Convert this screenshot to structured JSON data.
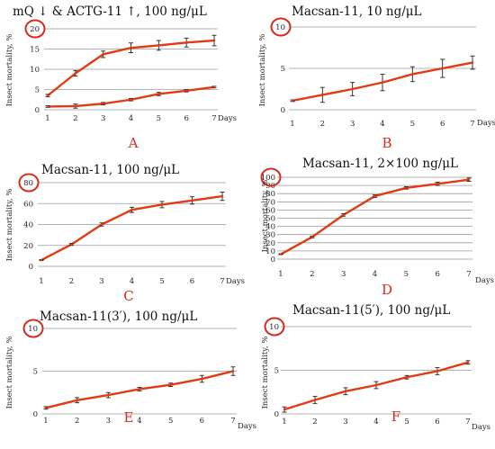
{
  "accent_color": "#e23a12",
  "circle_color": "#d62a1c",
  "grid_color": "#9a9a9a",
  "chart_data": [
    {
      "type": "line",
      "panel": "A",
      "title": "mQ ↓ & ACTG-11 ↑, 100 ng/μL",
      "xlabel": "Days",
      "ylabel": "Insect mortality, %",
      "x": [
        1,
        2,
        3,
        4,
        5,
        6,
        7
      ],
      "yticks": [
        "0",
        "5",
        "10",
        "15",
        "20"
      ],
      "ylim": [
        0,
        20
      ],
      "circled_tick": "20",
      "series": [
        {
          "values": [
            3.5,
            9,
            13.7,
            15.3,
            15.9,
            16.6,
            17.1
          ],
          "errors": [
            0.3,
            0.7,
            0.8,
            1.2,
            1.2,
            1.1,
            1.3
          ]
        },
        {
          "values": [
            0.8,
            0.9,
            1.5,
            2.5,
            3.9,
            4.7,
            5.6
          ],
          "errors": [
            0.2,
            0.5,
            0.3,
            0.3,
            0.4,
            0.3,
            0.2
          ]
        }
      ]
    },
    {
      "type": "line",
      "panel": "B",
      "title": "Macsan-11, 10 ng/μL",
      "xlabel": "Days",
      "ylabel": "Insect mortality, %",
      "x": [
        1,
        2,
        3,
        4,
        5,
        6,
        7
      ],
      "yticks": [
        "0",
        "5",
        "10"
      ],
      "ylim": [
        0,
        10
      ],
      "circled_tick": "10",
      "series": [
        {
          "values": [
            1.1,
            1.8,
            2.5,
            3.3,
            4.3,
            5.0,
            5.7
          ],
          "errors": [
            0.1,
            0.9,
            0.8,
            1.0,
            0.9,
            1.1,
            0.8
          ]
        }
      ]
    },
    {
      "type": "line",
      "panel": "C",
      "title": "Macsan-11, 100 ng/μL",
      "xlabel": "Days",
      "ylabel": "Insect mortality, %",
      "x": [
        1,
        2,
        3,
        4,
        5,
        6,
        7
      ],
      "yticks": [
        "0",
        "20",
        "40",
        "60",
        "80"
      ],
      "ylim": [
        0,
        80
      ],
      "circled_tick": "80",
      "series": [
        {
          "values": [
            6,
            21,
            40,
            54,
            59,
            63,
            67
          ],
          "errors": [
            0.5,
            1,
            1.5,
            2.5,
            3,
            3.5,
            4
          ]
        }
      ]
    },
    {
      "type": "line",
      "panel": "D",
      "title": "Macsan-11, 2×100 ng/μL",
      "xlabel": "Days",
      "ylabel": "Insect mortality, %",
      "x": [
        1,
        2,
        3,
        4,
        5,
        6,
        7
      ],
      "yticks": [
        "0",
        "10",
        "20",
        "30",
        "40",
        "50",
        "60",
        "70",
        "80",
        "90",
        "100"
      ],
      "ylim": [
        0,
        100
      ],
      "circled_tick": "100",
      "series": [
        {
          "values": [
            6,
            27,
            54,
            77,
            87,
            92,
            97
          ],
          "errors": [
            0.5,
            1,
            1.5,
            1.5,
            1.5,
            2,
            2
          ]
        }
      ]
    },
    {
      "type": "line",
      "panel": "E",
      "title": "Macsan-11(3′), 100 ng/μL",
      "xlabel": "Days",
      "ylabel": "Insect mortality, %",
      "x": [
        1,
        2,
        3,
        4,
        5,
        6,
        7
      ],
      "yticks": [
        "0",
        "5",
        "10"
      ],
      "ylim": [
        0,
        10
      ],
      "circled_tick": "10",
      "series": [
        {
          "values": [
            0.7,
            1.6,
            2.2,
            2.9,
            3.4,
            4.1,
            5.0
          ],
          "errors": [
            0.15,
            0.3,
            0.3,
            0.2,
            0.2,
            0.4,
            0.5
          ]
        }
      ]
    },
    {
      "type": "line",
      "panel": "F",
      "title": "Macsan-11(5′), 100 ng/μL",
      "xlabel": "Days",
      "ylabel": "Insect mortality, %",
      "x": [
        1,
        2,
        3,
        4,
        5,
        6,
        7
      ],
      "yticks": [
        "0",
        "5",
        "10"
      ],
      "ylim": [
        0,
        10
      ],
      "circled_tick": "10",
      "series": [
        {
          "values": [
            0.5,
            1.6,
            2.6,
            3.3,
            4.2,
            4.9,
            5.9
          ],
          "errors": [
            0.3,
            0.4,
            0.4,
            0.4,
            0.2,
            0.4,
            0.2
          ]
        }
      ]
    }
  ]
}
